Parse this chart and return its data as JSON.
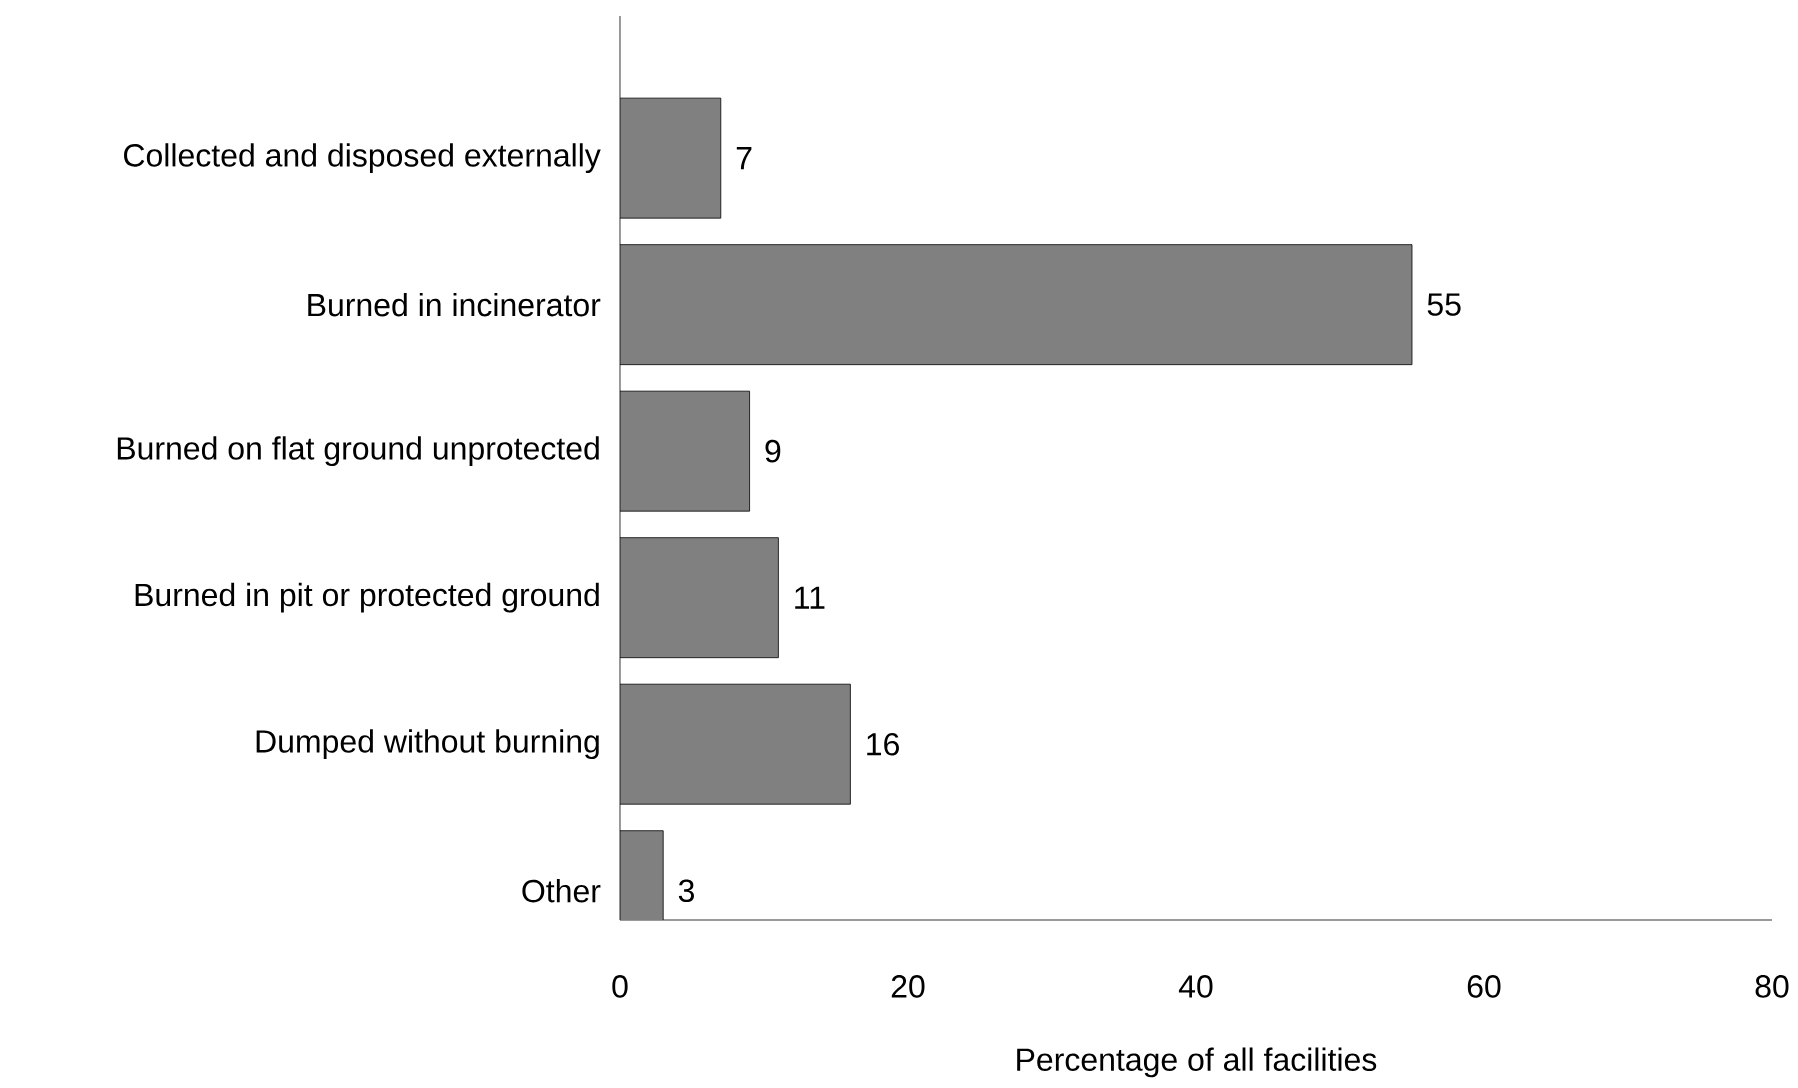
{
  "chart_data": {
    "type": "bar",
    "orientation": "horizontal",
    "xlabel": "Percentage of all facilities",
    "categories": [
      "Collected and disposed externally",
      "Burned in incinerator",
      "Burned on flat ground unprotected",
      "Burned in pit or protected ground",
      "Dumped without burning",
      "Other"
    ],
    "values": [
      7,
      55,
      9,
      11,
      16,
      3
    ],
    "color": "#808080",
    "xlim": [
      0,
      80
    ],
    "xticks": [
      0,
      20,
      40,
      60,
      80
    ],
    "data_labels": true
  }
}
